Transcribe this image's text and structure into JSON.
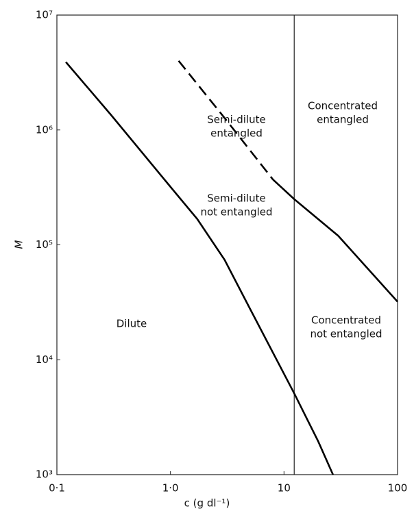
{
  "chart_data": {
    "type": "line",
    "x_label": "c (g dl⁻¹)",
    "y_label": "M",
    "log_x": true,
    "log_y": true,
    "color": "#000000",
    "xlim": [
      0.1,
      100
    ],
    "ylim": [
      1000,
      10000000
    ],
    "xticks": [
      {
        "value": 0.1,
        "label": "0·1"
      },
      {
        "value": 1,
        "label": "1·0"
      },
      10,
      100
    ],
    "yticks": [
      {
        "value": 1000,
        "label": "10³"
      },
      {
        "value": 10000,
        "label": "10⁴"
      },
      {
        "value": 100000,
        "label": "10⁵"
      },
      {
        "value": 1000000,
        "label": "10⁶"
      },
      {
        "value": 10000000,
        "label": "10⁷"
      }
    ],
    "boundary_x": 12.3,
    "series": [
      {
        "style": "solid",
        "x": [
          0.12,
          0.3,
          1,
          1.72,
          3,
          5,
          12.3,
          20,
          27
        ],
        "values": [
          3900000,
          1350000,
          320000,
          168000,
          74000,
          28000,
          5100,
          1950,
          1000
        ]
      },
      {
        "style": "dashed",
        "x": [
          1.18,
          3.08,
          8
        ],
        "values": [
          4000000,
          1230000,
          370000
        ]
      },
      {
        "style": "solid",
        "x": [
          8,
          12.3,
          30,
          100
        ],
        "values": [
          370000,
          250000,
          120000,
          32000
        ]
      }
    ],
    "regions": [
      [
        "Semi-dilute",
        "entangled"
      ],
      [
        "Concentrated",
        "entangled"
      ],
      [
        "Semi-dilute",
        "not entangled"
      ],
      [
        "Dilute"
      ],
      [
        "Concentrated",
        "not entangled"
      ]
    ]
  }
}
